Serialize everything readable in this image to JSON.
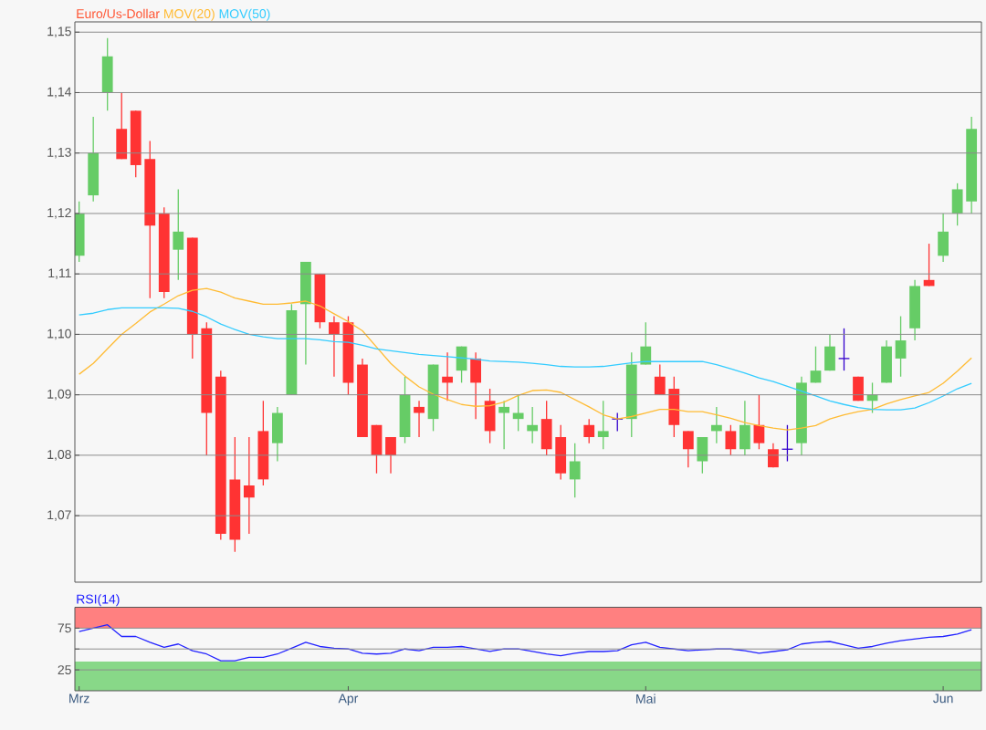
{
  "chart_data": [
    {
      "type": "candlestick",
      "categories": [
        null,
        null,
        null,
        null,
        null,
        null,
        null,
        null,
        null,
        null,
        null,
        null,
        null,
        null,
        null,
        null,
        null,
        null,
        null,
        null,
        null,
        null,
        null,
        null,
        null,
        null,
        null,
        null,
        null,
        null,
        null,
        null,
        null,
        null,
        null,
        null,
        null,
        null,
        null,
        null,
        null,
        null,
        null,
        null,
        null,
        null,
        null,
        null,
        null,
        null,
        null,
        null,
        null,
        null,
        null,
        null,
        null,
        null,
        null,
        null,
        null,
        null,
        null,
        null
      ],
      "ylim": [
        1.059,
        1.1517
      ],
      "yticks": [
        {
          "value": 1.07,
          "label": "1,07"
        },
        {
          "value": 1.08,
          "label": "1,08"
        },
        {
          "value": 1.09,
          "label": "1,09"
        },
        {
          "value": 1.1,
          "label": "1,10"
        },
        {
          "value": 1.11,
          "label": "1,11"
        },
        {
          "value": 1.12,
          "label": "1,12"
        },
        {
          "value": 1.13,
          "label": "1,13"
        },
        {
          "value": 1.14,
          "label": "1,14"
        },
        {
          "value": 1.15,
          "label": "1,15"
        }
      ],
      "grid": "y",
      "legend": "top left",
      "tick_labels": "y",
      "series": [
        {
          "name": "Euro/Us-Dollar",
          "type": "candlestick",
          "color": "#ff5533",
          "colors": [
            "#66cc66",
            "#66cc66",
            "#66cc66",
            "#ff3333",
            "#ff3333",
            "#ff3333",
            "#ff3333",
            "#66cc66",
            "#ff3333",
            "#ff3333",
            "#ff3333",
            "#ff3333",
            "#ff3333",
            "#ff3333",
            "#66cc66",
            "#66cc66",
            "#66cc66",
            "#ff3333",
            "#ff3333",
            "#ff3333",
            "#ff3333",
            "#ff3333",
            "#ff3333",
            "#66cc66",
            "#ff3333",
            "#66cc66",
            "#ff3333",
            "#66cc66",
            "#ff3333",
            "#ff3333",
            "#66cc66",
            "#66cc66",
            "#66cc66",
            "#ff3333",
            "#ff3333",
            "#66cc66",
            "#ff3333",
            "#66cc66",
            "#3300cc",
            "#66cc66",
            "#66cc66",
            "#ff3333",
            "#ff3333",
            "#ff3333",
            "#66cc66",
            "#66cc66",
            "#ff3333",
            "#66cc66",
            "#ff3333",
            "#ff3333",
            "#3300cc",
            "#66cc66",
            "#66cc66",
            "#66cc66",
            "#3300cc",
            "#ff3333",
            "#66cc66",
            "#66cc66",
            "#66cc66",
            "#66cc66",
            "#ff3333",
            "#66cc66",
            "#66cc66",
            "#66cc66"
          ],
          "ohlc": [
            [
              1.113,
              1.122,
              1.112,
              1.12
            ],
            [
              1.123,
              1.136,
              1.122,
              1.13
            ],
            [
              1.14,
              1.149,
              1.137,
              1.146
            ],
            [
              1.134,
              1.14,
              1.129,
              1.129
            ],
            [
              1.137,
              1.137,
              1.126,
              1.128
            ],
            [
              1.129,
              1.132,
              1.106,
              1.118
            ],
            [
              1.12,
              1.121,
              1.106,
              1.107
            ],
            [
              1.114,
              1.124,
              1.109,
              1.117
            ],
            [
              1.116,
              1.116,
              1.096,
              1.1
            ],
            [
              1.101,
              1.102,
              1.08,
              1.087
            ],
            [
              1.093,
              1.094,
              1.066,
              1.067
            ],
            [
              1.076,
              1.083,
              1.064,
              1.066
            ],
            [
              1.075,
              1.083,
              1.067,
              1.073
            ],
            [
              1.084,
              1.089,
              1.075,
              1.076
            ],
            [
              1.082,
              1.088,
              1.079,
              1.087
            ],
            [
              1.09,
              1.105,
              1.09,
              1.104
            ],
            [
              1.105,
              1.112,
              1.095,
              1.112
            ],
            [
              1.11,
              1.11,
              1.101,
              1.102
            ],
            [
              1.102,
              1.103,
              1.093,
              1.1
            ],
            [
              1.102,
              1.103,
              1.09,
              1.092
            ],
            [
              1.095,
              1.096,
              1.083,
              1.083
            ],
            [
              1.085,
              1.085,
              1.077,
              1.08
            ],
            [
              1.083,
              1.083,
              1.077,
              1.08
            ],
            [
              1.083,
              1.093,
              1.082,
              1.09
            ],
            [
              1.088,
              1.089,
              1.083,
              1.087
            ],
            [
              1.086,
              1.095,
              1.084,
              1.095
            ],
            [
              1.093,
              1.097,
              1.089,
              1.092
            ],
            [
              1.094,
              1.098,
              1.092,
              1.098
            ],
            [
              1.096,
              1.097,
              1.086,
              1.092
            ],
            [
              1.089,
              1.091,
              1.082,
              1.084
            ],
            [
              1.087,
              1.089,
              1.081,
              1.088
            ],
            [
              1.086,
              1.09,
              1.084,
              1.087
            ],
            [
              1.084,
              1.088,
              1.082,
              1.085
            ],
            [
              1.086,
              1.089,
              1.08,
              1.081
            ],
            [
              1.083,
              1.085,
              1.076,
              1.077
            ],
            [
              1.076,
              1.082,
              1.073,
              1.079
            ],
            [
              1.085,
              1.086,
              1.082,
              1.083
            ],
            [
              1.083,
              1.089,
              1.081,
              1.084
            ],
            [
              1.086,
              1.087,
              1.084,
              1.086
            ],
            [
              1.086,
              1.097,
              1.083,
              1.095
            ],
            [
              1.095,
              1.102,
              1.095,
              1.098
            ],
            [
              1.093,
              1.095,
              1.09,
              1.09
            ],
            [
              1.091,
              1.093,
              1.083,
              1.085
            ],
            [
              1.084,
              1.084,
              1.078,
              1.081
            ],
            [
              1.079,
              1.083,
              1.077,
              1.083
            ],
            [
              1.084,
              1.088,
              1.082,
              1.085
            ],
            [
              1.084,
              1.085,
              1.08,
              1.081
            ],
            [
              1.081,
              1.089,
              1.08,
              1.085
            ],
            [
              1.085,
              1.09,
              1.081,
              1.082
            ],
            [
              1.081,
              1.082,
              1.078,
              1.078
            ],
            [
              1.081,
              1.085,
              1.079,
              1.081
            ],
            [
              1.082,
              1.093,
              1.08,
              1.092
            ],
            [
              1.092,
              1.098,
              1.092,
              1.094
            ],
            [
              1.094,
              1.1,
              1.094,
              1.098
            ],
            [
              1.096,
              1.101,
              1.094,
              1.096
            ],
            [
              1.093,
              1.093,
              1.089,
              1.089
            ],
            [
              1.089,
              1.092,
              1.087,
              1.09
            ],
            [
              1.092,
              1.099,
              1.092,
              1.098
            ],
            [
              1.096,
              1.103,
              1.093,
              1.099
            ],
            [
              1.101,
              1.109,
              1.099,
              1.108
            ],
            [
              1.109,
              1.115,
              1.108,
              1.108
            ],
            [
              1.113,
              1.12,
              1.112,
              1.117
            ],
            [
              1.12,
              1.125,
              1.118,
              1.124
            ],
            [
              1.122,
              1.136,
              1.12,
              1.134
            ]
          ]
        },
        {
          "name": "MOV(20)",
          "type": "line",
          "color": "#ffbb33",
          "values": [
            1.0934,
            1.0952,
            1.0976,
            1.1,
            1.1018,
            1.1037,
            1.105,
            1.1064,
            1.1073,
            1.1076,
            1.107,
            1.106,
            1.1055,
            1.105,
            1.105,
            1.1052,
            1.1055,
            1.1047,
            1.1034,
            1.1021,
            1.1006,
            1.0979,
            1.0952,
            1.0931,
            1.0913,
            1.0901,
            1.0892,
            1.0884,
            1.0881,
            1.0882,
            1.0888,
            1.0899,
            1.0907,
            1.0908,
            1.0904,
            1.0892,
            1.088,
            1.0867,
            1.086,
            1.0864,
            1.087,
            1.0876,
            1.0876,
            1.0872,
            1.0872,
            1.0867,
            1.0861,
            1.0854,
            1.0849,
            1.0845,
            1.0842,
            1.0845,
            1.0849,
            1.086,
            1.0867,
            1.0872,
            1.0876,
            1.0885,
            1.0892,
            1.0898,
            1.0904,
            1.0919,
            1.0939,
            1.0961
          ]
        },
        {
          "name": "MOV(50)",
          "type": "line",
          "color": "#33ccff",
          "values": [
            1.1032,
            1.1035,
            1.1041,
            1.1044,
            1.1044,
            1.1044,
            1.1044,
            1.1043,
            1.1038,
            1.1029,
            1.1017,
            1.1008,
            1.1,
            1.0996,
            1.0993,
            1.0993,
            1.0993,
            1.0991,
            1.0988,
            1.0987,
            1.0982,
            1.0976,
            1.0973,
            1.097,
            1.0967,
            1.0965,
            1.0963,
            1.0961,
            1.0959,
            1.0956,
            1.0955,
            1.0954,
            1.0952,
            1.095,
            1.0947,
            1.0946,
            1.0946,
            1.0947,
            1.095,
            1.0953,
            1.0955,
            1.0955,
            1.0955,
            1.0955,
            1.0955,
            1.095,
            1.0943,
            1.0936,
            1.0928,
            1.0922,
            1.0914,
            1.0906,
            1.0898,
            1.089,
            1.0884,
            1.0879,
            1.0876,
            1.0875,
            1.0875,
            1.0878,
            1.0887,
            1.0898,
            1.091,
            1.0919
          ]
        }
      ]
    },
    {
      "type": "line",
      "title": "RSI(14)",
      "categories": [
        "Mrz",
        null,
        null,
        null,
        null,
        null,
        null,
        null,
        null,
        null,
        null,
        null,
        null,
        null,
        null,
        null,
        null,
        null,
        null,
        "Apr",
        null,
        null,
        null,
        null,
        null,
        null,
        null,
        null,
        null,
        null,
        null,
        null,
        null,
        null,
        null,
        null,
        null,
        null,
        null,
        null,
        "Mai",
        null,
        null,
        null,
        null,
        null,
        null,
        null,
        null,
        null,
        null,
        null,
        null,
        null,
        null,
        null,
        null,
        null,
        null,
        null,
        null,
        "Jun",
        null,
        null
      ],
      "ylim": [
        0,
        100
      ],
      "yticks": [
        25,
        {
          "value": 50,
          "label": null
        },
        75
      ],
      "grid": "y",
      "bands": [
        {
          "axis": "y",
          "from": 75,
          "to": 100,
          "color": "#ff8080"
        },
        {
          "axis": "y",
          "from": 0,
          "to": 35,
          "color": "#88d888"
        }
      ],
      "series": [
        {
          "color": "#2222ff",
          "values": [
            71,
            75,
            79,
            65,
            65,
            58,
            52,
            56,
            48,
            44,
            36,
            36,
            40,
            40,
            44,
            51,
            58,
            53,
            51,
            50,
            45,
            44,
            45,
            50,
            48,
            52,
            52,
            53,
            50,
            47,
            50,
            50,
            47,
            44,
            42,
            45,
            47,
            47,
            48,
            55,
            58,
            52,
            50,
            48,
            49,
            50,
            50,
            48,
            45,
            47,
            49,
            56,
            58,
            59,
            55,
            51,
            53,
            57,
            60,
            62,
            64,
            65,
            68,
            73
          ]
        }
      ]
    }
  ]
}
